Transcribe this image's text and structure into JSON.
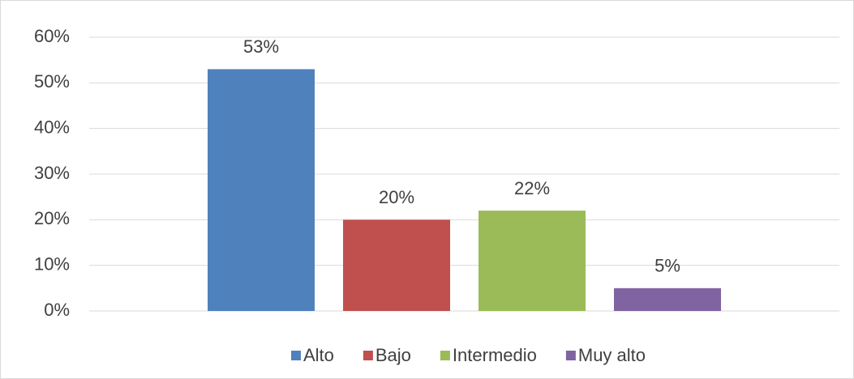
{
  "chart_data": {
    "type": "bar",
    "series": [
      {
        "name": "Alto",
        "color": "#4f81bd",
        "values": [
          53
        ],
        "value_labels": [
          "53%"
        ]
      },
      {
        "name": "Bajo",
        "color": "#c0504d",
        "values": [
          20
        ],
        "value_labels": [
          "20%"
        ]
      },
      {
        "name": "Intermedio",
        "color": "#9bbb59",
        "values": [
          22
        ],
        "value_labels": [
          "22%"
        ]
      },
      {
        "name": "Muy alto",
        "color": "#8064a2",
        "values": [
          5
        ],
        "value_labels": [
          "5%"
        ]
      }
    ],
    "ylim": [
      0,
      60
    ],
    "yticks": [
      {
        "value": 0,
        "label": "0%"
      },
      {
        "value": 10,
        "label": "10%"
      },
      {
        "value": 20,
        "label": "20%"
      },
      {
        "value": 30,
        "label": "30%"
      },
      {
        "value": 40,
        "label": "40%"
      },
      {
        "value": 50,
        "label": "50%"
      },
      {
        "value": 60,
        "label": "60%"
      }
    ],
    "grid": true,
    "legend": "bottom"
  }
}
